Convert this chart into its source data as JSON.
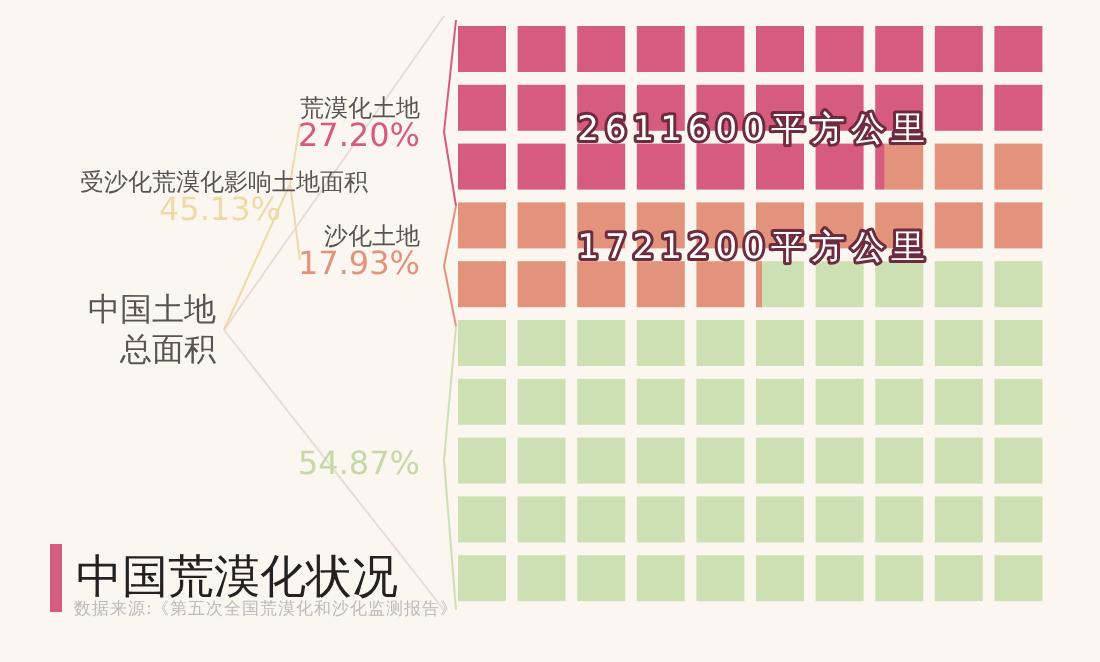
{
  "chart_data": {
    "type": "other",
    "title": "中国荒漠化状况",
    "categories": [
      "荒漠化土地",
      "沙化土地",
      null
    ],
    "values": [
      27.2,
      17.93,
      54.87
    ],
    "value_labels": [
      "27.20%",
      "17.93%",
      "54.87%"
    ],
    "colors": [
      "#d65c7e",
      "#e3937c",
      "#cde0b4"
    ],
    "annotations": [
      "受沙化荒漠化影响土地面积",
      "45.13%",
      "中国土地",
      "总面积",
      "2611600平方公里",
      "1721200平方公里",
      "数据来源:《第五次全国荒漠化和沙化监测报告》"
    ]
  }
}
